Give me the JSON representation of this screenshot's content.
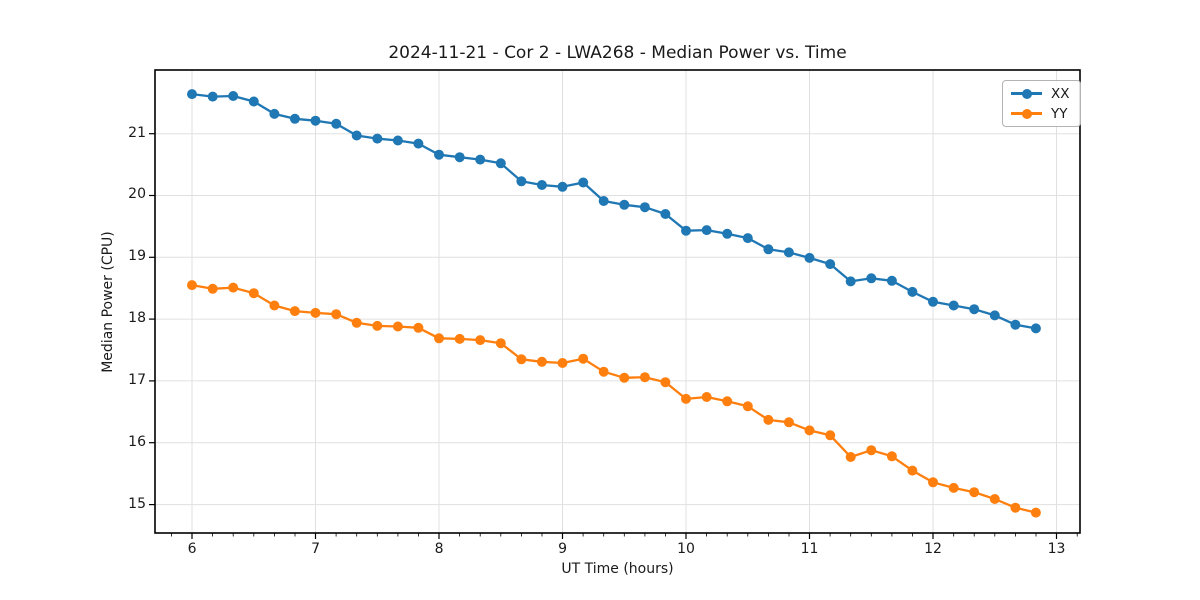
{
  "chart_data": {
    "type": "line",
    "title": "2024-11-21 - Cor 2 - LWA268 - Median Power vs. Time",
    "xlabel": "UT Time (hours)",
    "ylabel": "Median Power (CPU)",
    "xlim": [
      5.7,
      13.19
    ],
    "ylim": [
      14.54,
      22.03
    ],
    "xticks": [
      6,
      7,
      8,
      9,
      10,
      11,
      12,
      13
    ],
    "yticks": [
      15,
      16,
      17,
      18,
      19,
      20,
      21
    ],
    "x_minor_step": 0.16667,
    "grid": true,
    "grid_color": "#e0e0e0",
    "spine_color": "#000000",
    "legend_position": "upper right",
    "marker": "o",
    "x": [
      6.0,
      6.167,
      6.333,
      6.5,
      6.667,
      6.833,
      7.0,
      7.167,
      7.333,
      7.5,
      7.667,
      7.833,
      8.0,
      8.167,
      8.333,
      8.5,
      8.667,
      8.833,
      9.0,
      9.167,
      9.333,
      9.5,
      9.667,
      9.833,
      10.0,
      10.167,
      10.333,
      10.5,
      10.667,
      10.833,
      11.0,
      11.167,
      11.333,
      11.5,
      11.667,
      11.833,
      12.0,
      12.167,
      12.333,
      12.5,
      12.667,
      12.833
    ],
    "series": [
      {
        "name": "XX",
        "color": "#1f77b4",
        "values": [
          21.64,
          21.6,
          21.61,
          21.52,
          21.32,
          21.24,
          21.21,
          21.16,
          20.97,
          20.92,
          20.89,
          20.84,
          20.66,
          20.62,
          20.58,
          20.52,
          20.23,
          20.17,
          20.14,
          20.21,
          19.91,
          19.85,
          19.81,
          19.7,
          19.43,
          19.44,
          19.38,
          19.31,
          19.13,
          19.08,
          18.99,
          18.89,
          18.61,
          18.66,
          18.62,
          18.44,
          18.28,
          18.22,
          18.16,
          18.06,
          17.91,
          17.85
        ]
      },
      {
        "name": "YY",
        "color": "#ff7f0e",
        "values": [
          18.55,
          18.49,
          18.51,
          18.42,
          18.22,
          18.13,
          18.1,
          18.08,
          17.94,
          17.89,
          17.88,
          17.86,
          17.69,
          17.68,
          17.66,
          17.61,
          17.35,
          17.31,
          17.29,
          17.36,
          17.15,
          17.05,
          17.06,
          16.98,
          16.71,
          16.74,
          16.67,
          16.59,
          16.37,
          16.33,
          16.2,
          16.12,
          15.77,
          15.88,
          15.78,
          15.55,
          15.36,
          15.27,
          15.2,
          15.09,
          14.95,
          14.87
        ]
      }
    ]
  }
}
